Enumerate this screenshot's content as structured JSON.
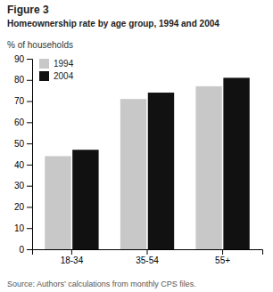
{
  "chart_data": {
    "type": "bar",
    "title": "Figure 3",
    "subtitle": "Homeownership rate by age group, 1994 and 2004",
    "ylabel": "% of households",
    "annotations": [
      "Source: Authors’ calculations from monthly CPS files."
    ],
    "categories": [
      "18-34",
      "35-54",
      "55+"
    ],
    "series": [
      {
        "name": "1994",
        "color": "#c8c8c8",
        "values": [
          44,
          71,
          77
        ]
      },
      {
        "name": "2004",
        "color": "#111111",
        "values": [
          47,
          74,
          81
        ]
      }
    ],
    "ylim": [
      0,
      90
    ],
    "yticks": [
      0,
      10,
      20,
      30,
      40,
      50,
      60,
      70,
      80,
      90
    ],
    "grid": false,
    "legend": "upper-left"
  }
}
